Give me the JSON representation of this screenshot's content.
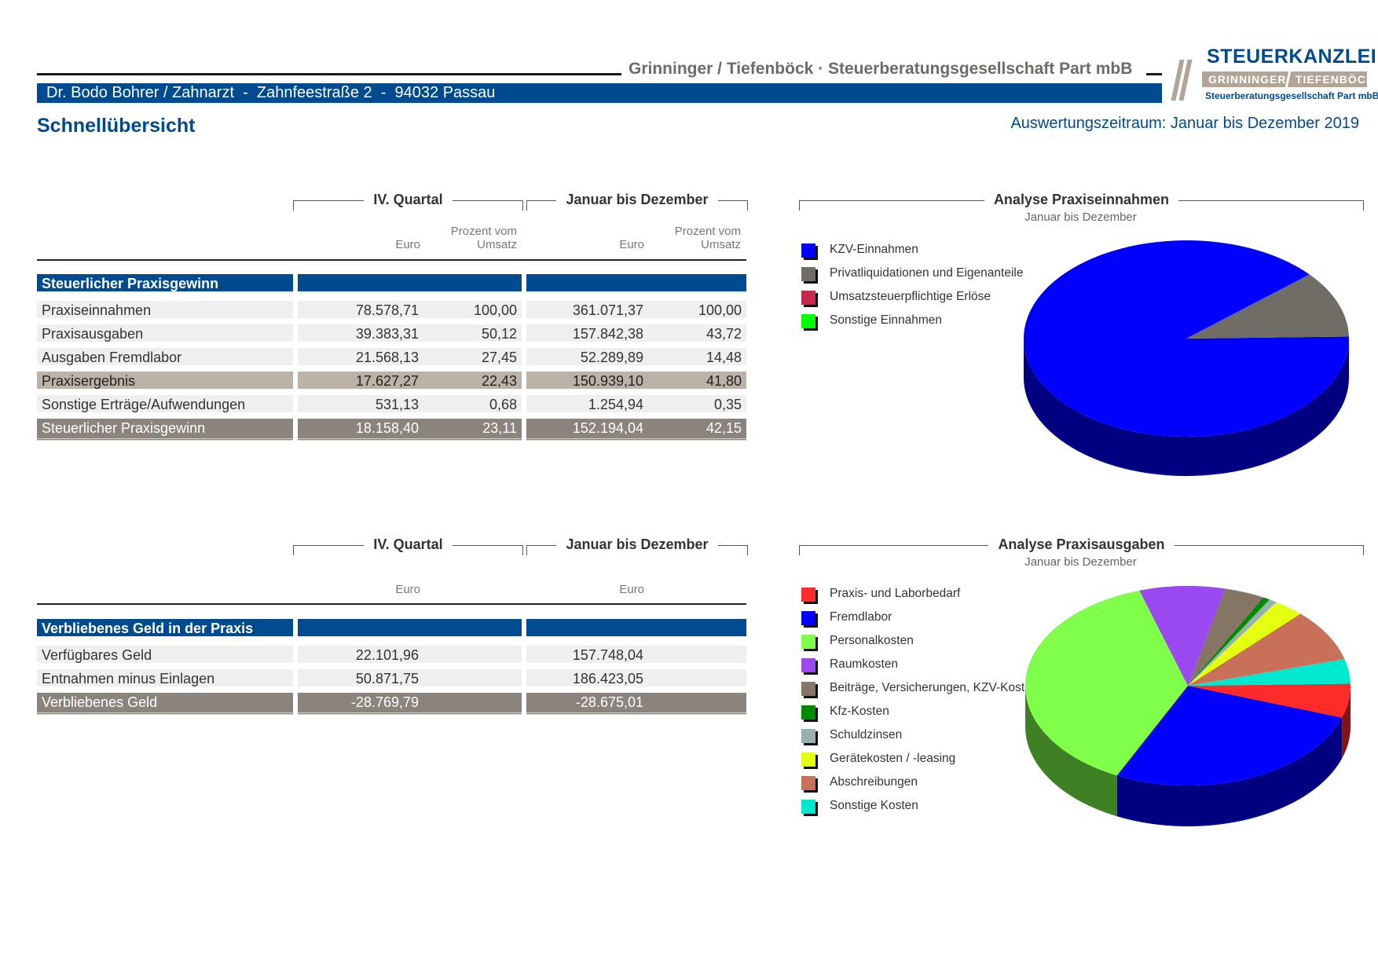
{
  "header": {
    "firm": "Grinninger / Tiefenböck · Steuerberatungsgesellschaft Part mbB",
    "client": "Dr. Bodo Bohrer / Zahnarzt  -  Zahnfeestraße 2  -  94032 Passau",
    "logo": {
      "title": "STEUERKANZLEI",
      "left": "GRINNINGER",
      "right": "TIEFENBÖCK",
      "sub": "Steuerberatungsgesellschaft Part mbB"
    }
  },
  "title": "Schnellübersicht",
  "period": "Auswertungszeitraum: Januar bis Dezember 2019",
  "table1": {
    "group_labels": [
      "IV. Quartal",
      "Januar bis Dezember"
    ],
    "col_euro": "Euro",
    "col_pct_1": "Prozent vom",
    "col_pct_2": "Umsatz",
    "section": "Steuerlicher Praxisgewinn",
    "rows": [
      {
        "label": "Praxiseinnahmen",
        "q_eur": "78.578,71",
        "q_pct": "100,00",
        "y_eur": "361.071,37",
        "y_pct": "100,00"
      },
      {
        "label": "Praxisausgaben",
        "q_eur": "39.383,31",
        "q_pct": "50,12",
        "y_eur": "157.842,38",
        "y_pct": "43,72"
      },
      {
        "label": "Ausgaben Fremdlabor",
        "q_eur": "21.568,13",
        "q_pct": "27,45",
        "y_eur": "52.289,89",
        "y_pct": "14,48"
      },
      {
        "label": "Praxisergebnis",
        "q_eur": "17.627,27",
        "q_pct": "22,43",
        "y_eur": "150.939,10",
        "y_pct": "41,80"
      },
      {
        "label": "Sonstige Erträge/Aufwendungen",
        "q_eur": "531,13",
        "q_pct": "0,68",
        "y_eur": "1.254,94",
        "y_pct": "0,35"
      },
      {
        "label": "Steuerlicher Praxisgewinn",
        "q_eur": "18.158,40",
        "q_pct": "23,11",
        "y_eur": "152.194,04",
        "y_pct": "42,15"
      }
    ]
  },
  "table2": {
    "group_labels": [
      "IV. Quartal",
      "Januar bis Dezember"
    ],
    "col_euro": "Euro",
    "section": "Verbliebenes Geld in der Praxis",
    "rows": [
      {
        "label": "Verfügbares Geld",
        "q_eur": "22.101,96",
        "y_eur": "157.748,04"
      },
      {
        "label": "Entnahmen minus Einlagen",
        "q_eur": "50.871,75",
        "y_eur": "186.423,05"
      },
      {
        "label": "Verbliebenes Geld",
        "q_eur": "-28.769,79",
        "y_eur": "-28.675,01"
      }
    ]
  },
  "chart_data": [
    {
      "type": "pie",
      "title": "Analyse Praxiseinnahmen",
      "subtitle": "Januar bis Dezember",
      "categories": [
        "KZV-Einnahmen",
        "Privatliquidationen und Eigenanteile",
        "Umsatzsteuerpflichtige Erlöse",
        "Sonstige Einnahmen"
      ],
      "values": [
        89,
        11,
        0,
        0
      ],
      "colors": [
        "#0000ff",
        "#706c66",
        "#c8284c",
        "#00ff00"
      ],
      "legend": "left"
    },
    {
      "type": "pie",
      "title": "Analyse Praxisausgaben",
      "subtitle": "Januar bis Dezember",
      "categories": [
        "Praxis- und Laborbedarf",
        "Fremdlabor",
        "Personalkosten",
        "Raumkosten",
        "Beiträge, Versicherungen, KZV-Kosten",
        "Kfz-Kosten",
        "Schuldzinsen",
        "Gerätekosten / -leasing",
        "Abschreibungen",
        "Sonstige Kosten"
      ],
      "values": [
        5.5,
        27,
        38,
        8.5,
        4,
        0.7,
        0.8,
        3,
        8.5,
        4
      ],
      "colors": [
        "#ff2a2a",
        "#0000ff",
        "#80ff4a",
        "#9a48f0",
        "#857565",
        "#008a00",
        "#9ab0b0",
        "#e4ff10",
        "#c87058",
        "#00e8d0"
      ],
      "legend": "left"
    }
  ]
}
